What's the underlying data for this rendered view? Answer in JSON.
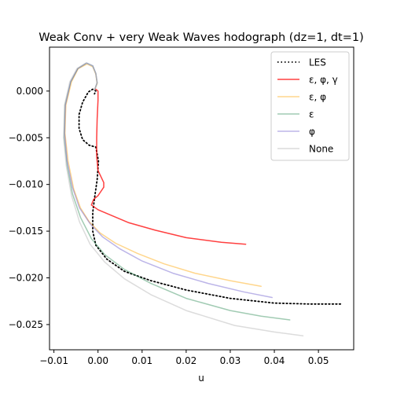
{
  "chart_data": {
    "type": "line",
    "title": "Weak Conv + very Weak Waves hodograph (dz=1, dt=1)",
    "xlabel": "u",
    "ylabel": "",
    "xlim": [
      -0.011,
      0.058
    ],
    "ylim": [
      -0.0277,
      0.0047
    ],
    "xticks": [
      -0.01,
      0.0,
      0.01,
      0.02,
      0.03,
      0.04,
      0.05
    ],
    "xtick_labels": [
      "−0.01",
      "0.00",
      "0.01",
      "0.02",
      "0.03",
      "0.04",
      "0.05"
    ],
    "yticks": [
      0.0,
      -0.005,
      -0.01,
      -0.015,
      -0.02,
      -0.025
    ],
    "ytick_labels": [
      "0.000",
      "−0.005",
      "−0.010",
      "−0.015",
      "−0.020",
      "−0.025"
    ],
    "grid": false,
    "legend_position": "top-right",
    "series": [
      {
        "name": "LES",
        "color": "#000000",
        "style": "dotted",
        "points": [
          [
            0.055,
            -0.0228
          ],
          [
            0.048,
            -0.0228
          ],
          [
            0.04,
            -0.0227
          ],
          [
            0.03,
            -0.0222
          ],
          [
            0.02,
            -0.0213
          ],
          [
            0.012,
            -0.0203
          ],
          [
            0.006,
            -0.0193
          ],
          [
            0.002,
            -0.018
          ],
          [
            -0.0005,
            -0.0165
          ],
          [
            -0.0012,
            -0.015
          ],
          [
            -0.0012,
            -0.013
          ],
          [
            -0.0008,
            -0.0115
          ],
          [
            -0.0002,
            -0.0095
          ],
          [
            0.0001,
            -0.0075
          ],
          [
            -0.0005,
            -0.006
          ],
          [
            -0.002,
            -0.0058
          ],
          [
            -0.0035,
            -0.0052
          ],
          [
            -0.0043,
            -0.004
          ],
          [
            -0.0043,
            -0.0025
          ],
          [
            -0.0035,
            -0.0012
          ],
          [
            -0.0022,
            -0.0001
          ],
          [
            -0.0012,
            0.0002
          ],
          [
            -0.0005,
            0.0
          ],
          [
            -0.0008,
            -0.0003
          ]
        ]
      },
      {
        "name": "ε, φ, γ",
        "color": "#ff0000",
        "style": "solid",
        "points": [
          [
            0.0335,
            -0.0164
          ],
          [
            0.028,
            -0.0162
          ],
          [
            0.02,
            -0.0157
          ],
          [
            0.013,
            -0.0149
          ],
          [
            0.007,
            -0.0141
          ],
          [
            0.003,
            -0.0133
          ],
          [
            0.0,
            -0.0127
          ],
          [
            -0.0015,
            -0.0122
          ],
          [
            -0.001,
            -0.0116
          ],
          [
            0.0,
            -0.0112
          ],
          [
            0.0013,
            -0.0103
          ],
          [
            0.0013,
            -0.0098
          ],
          [
            0.0,
            -0.0085
          ],
          [
            -0.0003,
            -0.007
          ],
          [
            -0.0003,
            -0.005
          ],
          [
            -0.0002,
            -0.003
          ],
          [
            0.0,
            -0.001
          ],
          [
            0.0,
            0.0
          ],
          [
            -0.0005,
            0.0002
          ]
        ]
      },
      {
        "name": "ε, φ",
        "color": "#ffa500",
        "style": "solid",
        "points": [
          [
            0.037,
            -0.0209
          ],
          [
            0.03,
            -0.0203
          ],
          [
            0.022,
            -0.0195
          ],
          [
            0.015,
            -0.0185
          ],
          [
            0.009,
            -0.0174
          ],
          [
            0.004,
            -0.0163
          ],
          [
            0.0005,
            -0.0152
          ],
          [
            -0.002,
            -0.014
          ],
          [
            -0.004,
            -0.0125
          ],
          [
            -0.0055,
            -0.0105
          ],
          [
            -0.0068,
            -0.0075
          ],
          [
            -0.0075,
            -0.0045
          ],
          [
            -0.0073,
            -0.0015
          ],
          [
            -0.006,
            0.001
          ],
          [
            -0.0045,
            0.0024
          ],
          [
            -0.0025,
            0.0029
          ],
          [
            -0.0012,
            0.0026
          ],
          [
            -0.0005,
            0.0018
          ],
          [
            -0.0002,
            0.0008
          ],
          [
            -0.0008,
            0.0001
          ]
        ]
      },
      {
        "name": "ε",
        "color": "#2e8b57",
        "style": "solid",
        "points": [
          [
            0.0435,
            -0.0245
          ],
          [
            0.037,
            -0.0241
          ],
          [
            0.03,
            -0.0235
          ],
          [
            0.02,
            -0.0222
          ],
          [
            0.012,
            -0.0206
          ],
          [
            0.006,
            -0.0191
          ],
          [
            0.0015,
            -0.0175
          ],
          [
            -0.0015,
            -0.0158
          ],
          [
            -0.004,
            -0.0135
          ],
          [
            -0.0058,
            -0.011
          ],
          [
            -0.007,
            -0.008
          ],
          [
            -0.0077,
            -0.005
          ],
          [
            -0.0075,
            -0.0015
          ],
          [
            -0.0062,
            0.001
          ],
          [
            -0.0046,
            0.0024
          ],
          [
            -0.0026,
            0.003
          ],
          [
            -0.0012,
            0.0027
          ],
          [
            -0.0005,
            0.0019
          ],
          [
            -0.0002,
            0.0009
          ],
          [
            -0.0008,
            0.0001
          ]
        ]
      },
      {
        "name": "φ",
        "color": "#6a5acd",
        "style": "solid",
        "points": [
          [
            0.0395,
            -0.0221
          ],
          [
            0.033,
            -0.0215
          ],
          [
            0.025,
            -0.0206
          ],
          [
            0.017,
            -0.0195
          ],
          [
            0.01,
            -0.0182
          ],
          [
            0.005,
            -0.0169
          ],
          [
            0.001,
            -0.0156
          ],
          [
            -0.0018,
            -0.0142
          ],
          [
            -0.0042,
            -0.0125
          ],
          [
            -0.0058,
            -0.0103
          ],
          [
            -0.007,
            -0.0075
          ],
          [
            -0.0076,
            -0.0045
          ],
          [
            -0.0074,
            -0.0015
          ],
          [
            -0.0062,
            0.001
          ],
          [
            -0.0046,
            0.0024
          ],
          [
            -0.0026,
            0.003
          ],
          [
            -0.0012,
            0.0027
          ],
          [
            -0.0005,
            0.0019
          ],
          [
            -0.0002,
            0.0009
          ],
          [
            -0.0008,
            0.0001
          ]
        ]
      },
      {
        "name": "None",
        "color": "#c0c0c0",
        "style": "solid",
        "points": [
          [
            0.0465,
            -0.0262
          ],
          [
            0.04,
            -0.0258
          ],
          [
            0.031,
            -0.0251
          ],
          [
            0.02,
            -0.0235
          ],
          [
            0.012,
            -0.0218
          ],
          [
            0.006,
            -0.0201
          ],
          [
            0.0015,
            -0.0183
          ],
          [
            -0.0018,
            -0.0164
          ],
          [
            -0.0042,
            -0.014
          ],
          [
            -0.006,
            -0.0112
          ],
          [
            -0.0072,
            -0.008
          ],
          [
            -0.0078,
            -0.005
          ],
          [
            -0.0076,
            -0.0015
          ],
          [
            -0.0064,
            0.001
          ],
          [
            -0.0048,
            0.0024
          ],
          [
            -0.0028,
            0.003
          ],
          [
            -0.0013,
            0.0027
          ],
          [
            -0.0005,
            0.0019
          ],
          [
            -0.0002,
            0.0009
          ],
          [
            -0.0008,
            0.0001
          ]
        ]
      }
    ]
  }
}
